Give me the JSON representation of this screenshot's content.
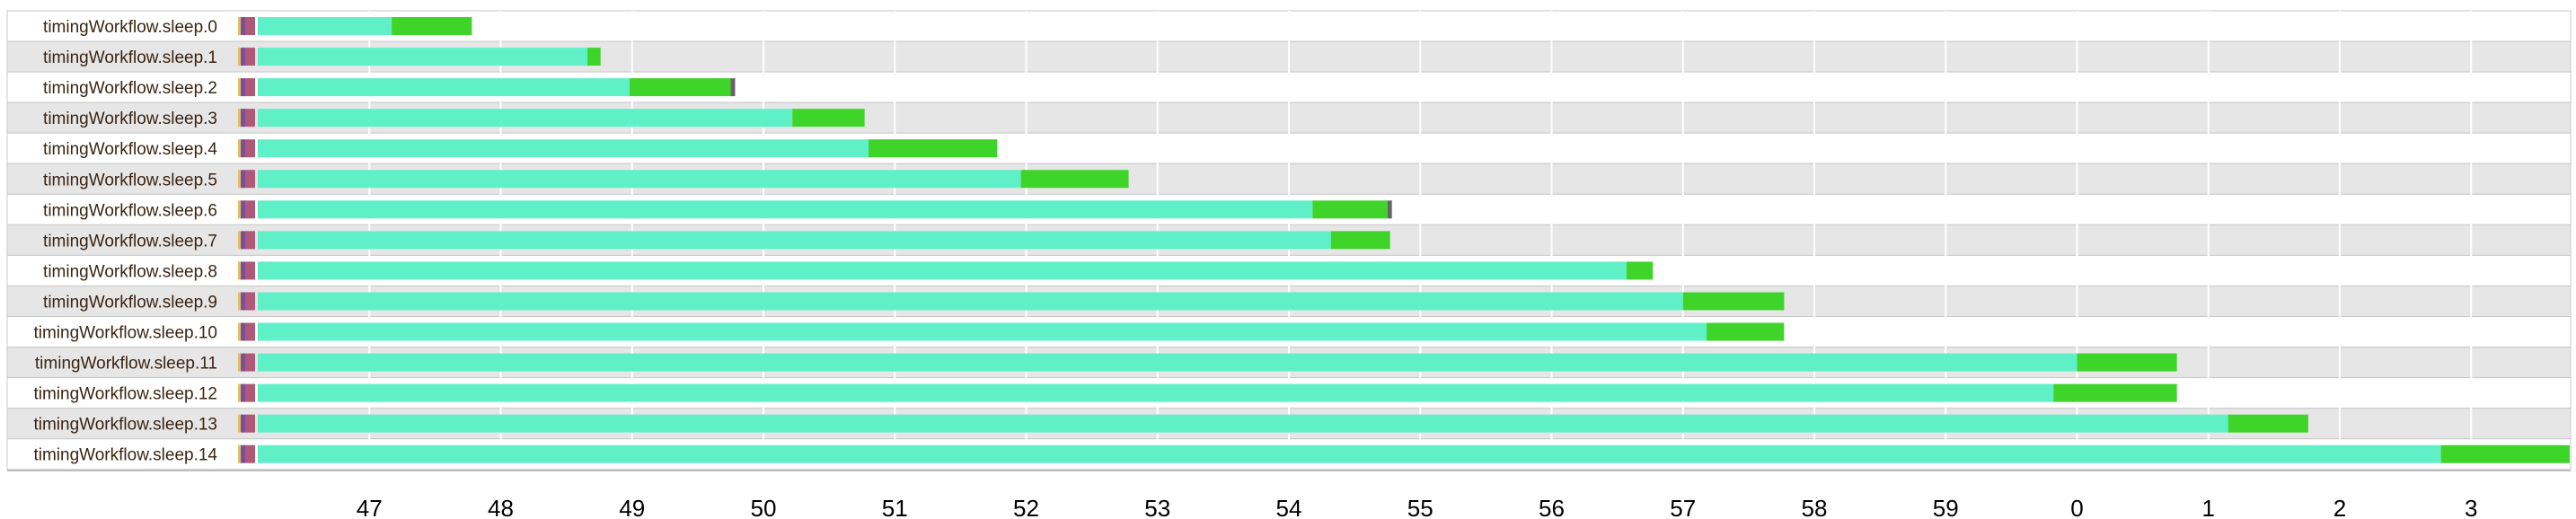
{
  "chart_data": {
    "type": "timeline",
    "title": "",
    "x_unit": "seconds",
    "x_ticks": [
      "47",
      "48",
      "49",
      "50",
      "51",
      "52",
      "53",
      "54",
      "55",
      "56",
      "57",
      "58",
      "59",
      "0",
      "1",
      "2",
      "3"
    ],
    "xlim": [
      46.0,
      63.75
    ],
    "grid": true,
    "legend": "none",
    "colors": {
      "pre_a": "#e0c060",
      "pre_b": "#7a4fa0",
      "pre_c": "#b05878",
      "running": "#5ff0c8",
      "completed": "#3fd42a",
      "end_marker": "#666666",
      "row_alt": "#e6e6e6",
      "row_plain": "#ffffff",
      "grid": "#ffffff",
      "label": "#3b2413"
    },
    "rows": [
      {
        "label": "timingWorkflow.sleep.0",
        "running": [
          46.15,
          47.17
        ],
        "completed": [
          47.17,
          47.78
        ],
        "end_marker": false
      },
      {
        "label": "timingWorkflow.sleep.1",
        "running": [
          46.15,
          48.66
        ],
        "completed": [
          48.66,
          48.76
        ],
        "end_marker": false
      },
      {
        "label": "timingWorkflow.sleep.2",
        "running": [
          46.15,
          48.98
        ],
        "completed": [
          48.98,
          49.75
        ],
        "end_marker": true
      },
      {
        "label": "timingWorkflow.sleep.3",
        "running": [
          46.15,
          50.22
        ],
        "completed": [
          50.22,
          50.77
        ],
        "end_marker": false
      },
      {
        "label": "timingWorkflow.sleep.4",
        "running": [
          46.15,
          50.8
        ],
        "completed": [
          50.8,
          51.78
        ],
        "end_marker": false
      },
      {
        "label": "timingWorkflow.sleep.5",
        "running": [
          46.15,
          51.96
        ],
        "completed": [
          51.96,
          52.78
        ],
        "end_marker": false
      },
      {
        "label": "timingWorkflow.sleep.6",
        "running": [
          46.15,
          54.18
        ],
        "completed": [
          54.18,
          54.75
        ],
        "end_marker": true
      },
      {
        "label": "timingWorkflow.sleep.7",
        "running": [
          46.15,
          54.32
        ],
        "completed": [
          54.32,
          54.77
        ],
        "end_marker": false
      },
      {
        "label": "timingWorkflow.sleep.8",
        "running": [
          46.15,
          56.57
        ],
        "completed": [
          56.57,
          56.77
        ],
        "end_marker": false
      },
      {
        "label": "timingWorkflow.sleep.9",
        "running": [
          46.15,
          57.0
        ],
        "completed": [
          57.0,
          57.77
        ],
        "end_marker": false
      },
      {
        "label": "timingWorkflow.sleep.10",
        "running": [
          46.15,
          57.18
        ],
        "completed": [
          57.18,
          57.77
        ],
        "end_marker": false
      },
      {
        "label": "timingWorkflow.sleep.11",
        "running": [
          46.15,
          60.0
        ],
        "completed": [
          60.0,
          60.76
        ],
        "end_marker": false
      },
      {
        "label": "timingWorkflow.sleep.12",
        "running": [
          46.15,
          59.82
        ],
        "completed": [
          59.82,
          60.76
        ],
        "end_marker": false
      },
      {
        "label": "timingWorkflow.sleep.13",
        "running": [
          46.15,
          61.15
        ],
        "completed": [
          61.15,
          61.76
        ],
        "end_marker": false
      },
      {
        "label": "timingWorkflow.sleep.14",
        "running": [
          46.15,
          62.77
        ],
        "completed": [
          62.77,
          63.75
        ],
        "end_marker": false
      }
    ]
  }
}
